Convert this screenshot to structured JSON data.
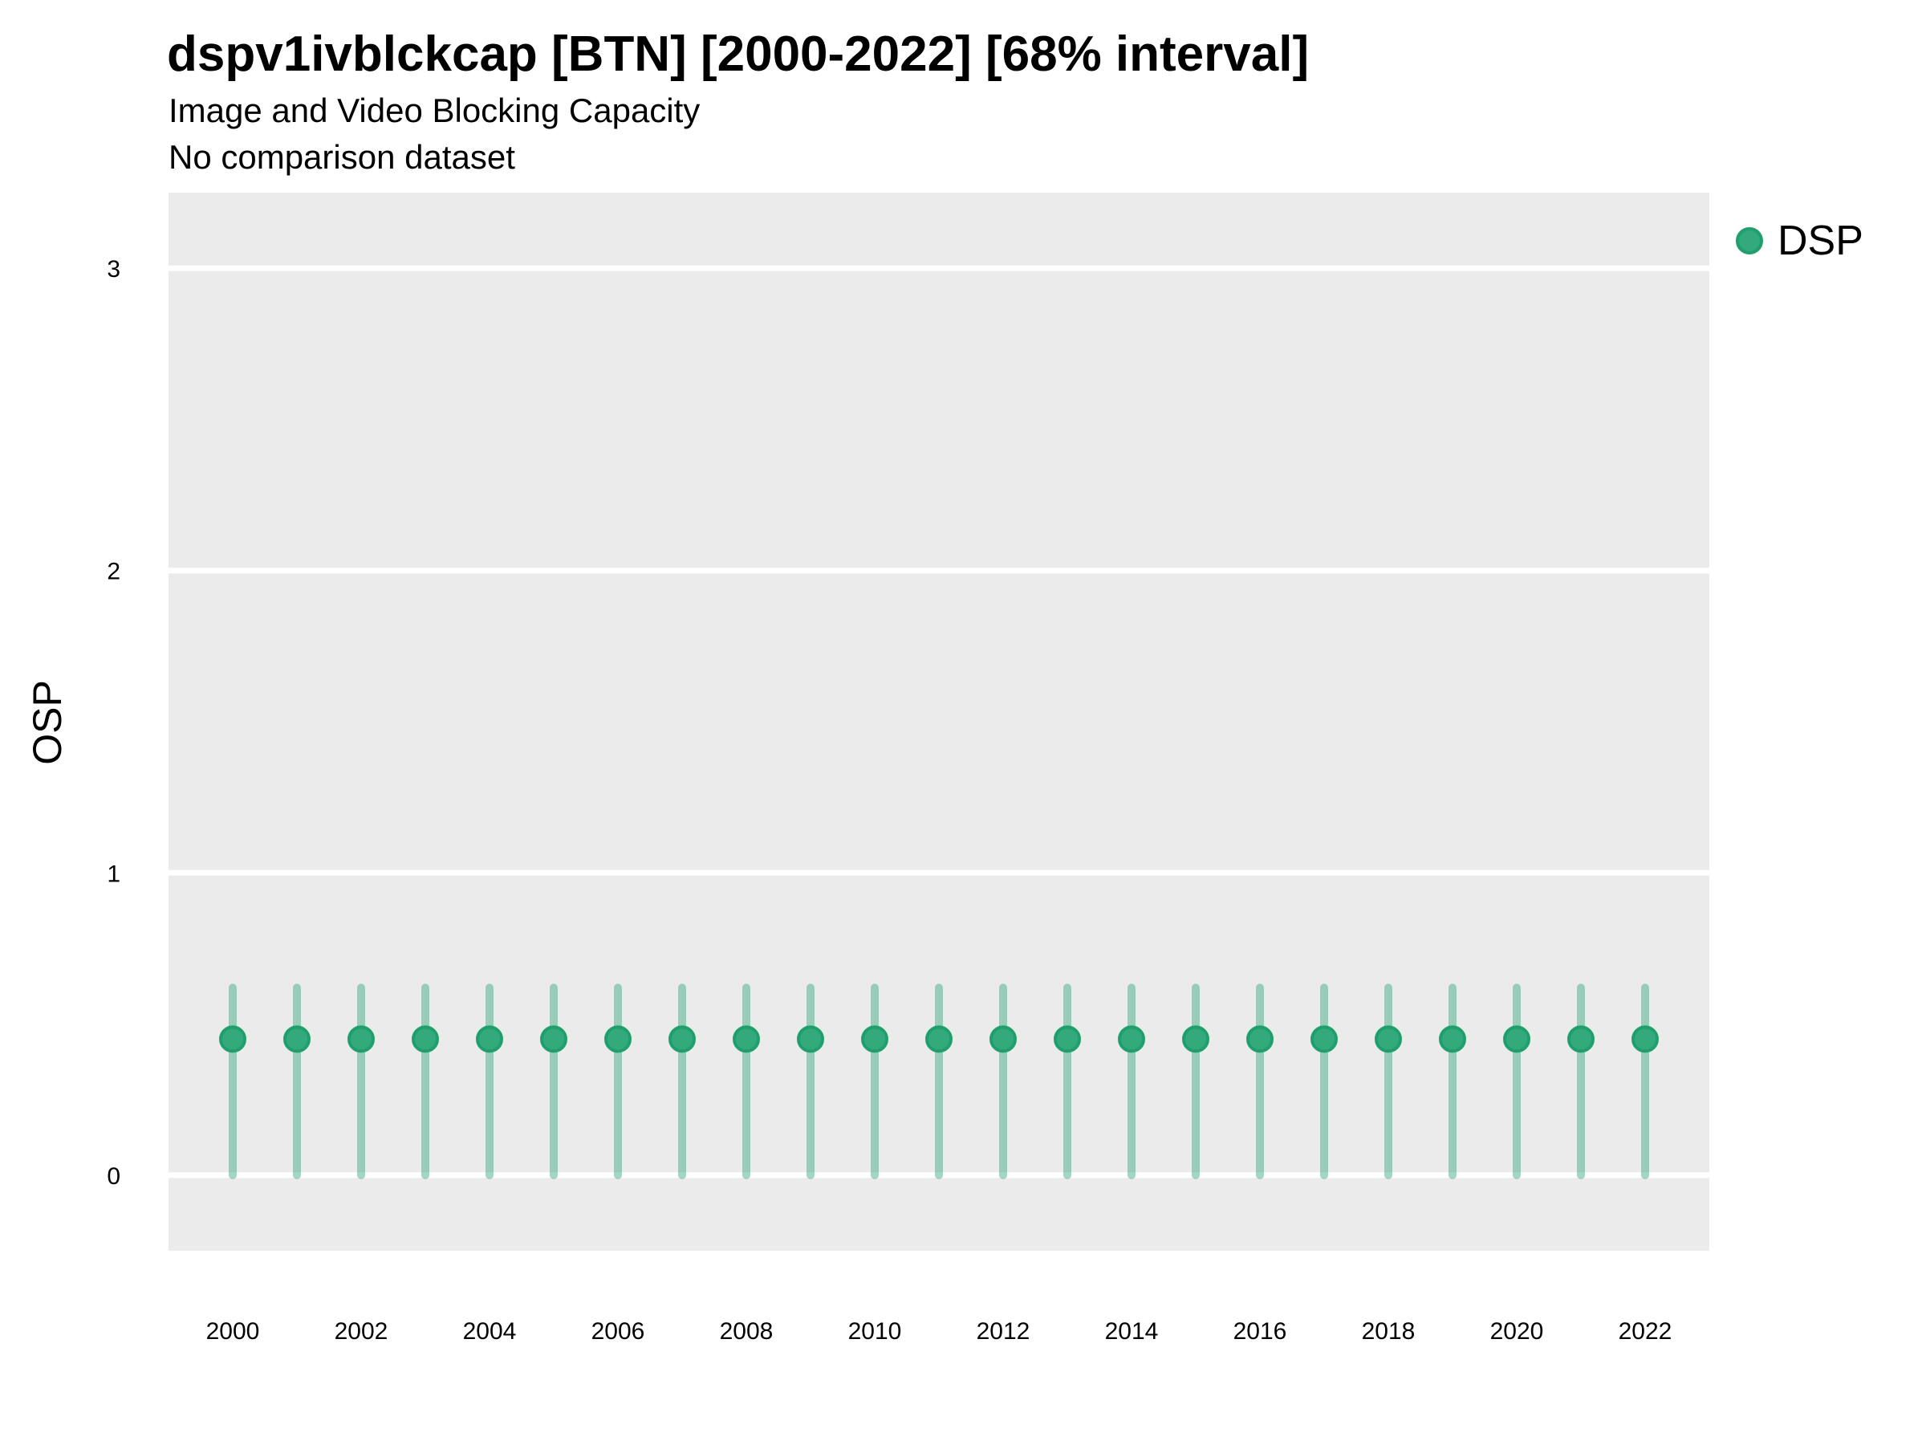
{
  "header": {
    "title": "dspv1ivblckcap [BTN] [2000-2022] [68% interval]",
    "subtitle": "Image and Video Blocking Capacity",
    "note": "No comparison dataset"
  },
  "axes": {
    "y_label": "OSP"
  },
  "legend": {
    "position": "right-top",
    "items": [
      {
        "label": "DSP",
        "marker": "circle-icon",
        "color": "#34aa7c",
        "ring": "#1f9f6c"
      }
    ]
  },
  "chart_data": {
    "type": "scatter",
    "title": "dspv1ivblckcap [BTN] [2000-2022] [68% interval]",
    "subtitle": "Image and Video Blocking Capacity",
    "note": "No comparison dataset",
    "xlabel": "",
    "ylabel": "OSP",
    "interval_label": "68% interval",
    "legend_position": "right-top",
    "grid": "horizontal-major-only",
    "panel_bg": "#EBEBEB",
    "gridline_color": "#FFFFFF",
    "point_color": "#34aa7c",
    "point_ring_color": "#1f9f6c",
    "interval_color": "rgba(44,168,125,0.45)",
    "tick_color": "#000000",
    "xlim": [
      1999,
      2023
    ],
    "ylim": [
      -0.25,
      3.25
    ],
    "xticks": [
      2000,
      2002,
      2004,
      2006,
      2008,
      2010,
      2012,
      2014,
      2016,
      2018,
      2020,
      2022
    ],
    "yticks": [
      0,
      1,
      2,
      3
    ],
    "x": [
      2000,
      2001,
      2002,
      2003,
      2004,
      2005,
      2006,
      2007,
      2008,
      2009,
      2010,
      2011,
      2012,
      2013,
      2014,
      2015,
      2016,
      2017,
      2018,
      2019,
      2020,
      2021,
      2022
    ],
    "series": [
      {
        "name": "DSP",
        "mean": [
          0.45,
          0.45,
          0.45,
          0.45,
          0.45,
          0.45,
          0.45,
          0.45,
          0.45,
          0.45,
          0.45,
          0.45,
          0.45,
          0.45,
          0.45,
          0.45,
          0.45,
          0.45,
          0.45,
          0.45,
          0.45,
          0.45,
          0.45
        ],
        "lower": [
          0.0,
          0.0,
          0.0,
          0.0,
          0.0,
          0.0,
          0.0,
          0.0,
          0.0,
          0.0,
          0.0,
          0.0,
          0.0,
          0.0,
          0.0,
          0.0,
          0.0,
          0.0,
          0.0,
          0.0,
          0.0,
          0.0,
          0.0
        ],
        "upper": [
          0.62,
          0.62,
          0.62,
          0.62,
          0.62,
          0.62,
          0.62,
          0.62,
          0.62,
          0.62,
          0.62,
          0.62,
          0.62,
          0.62,
          0.62,
          0.62,
          0.62,
          0.62,
          0.62,
          0.62,
          0.62,
          0.62,
          0.62
        ]
      }
    ]
  }
}
